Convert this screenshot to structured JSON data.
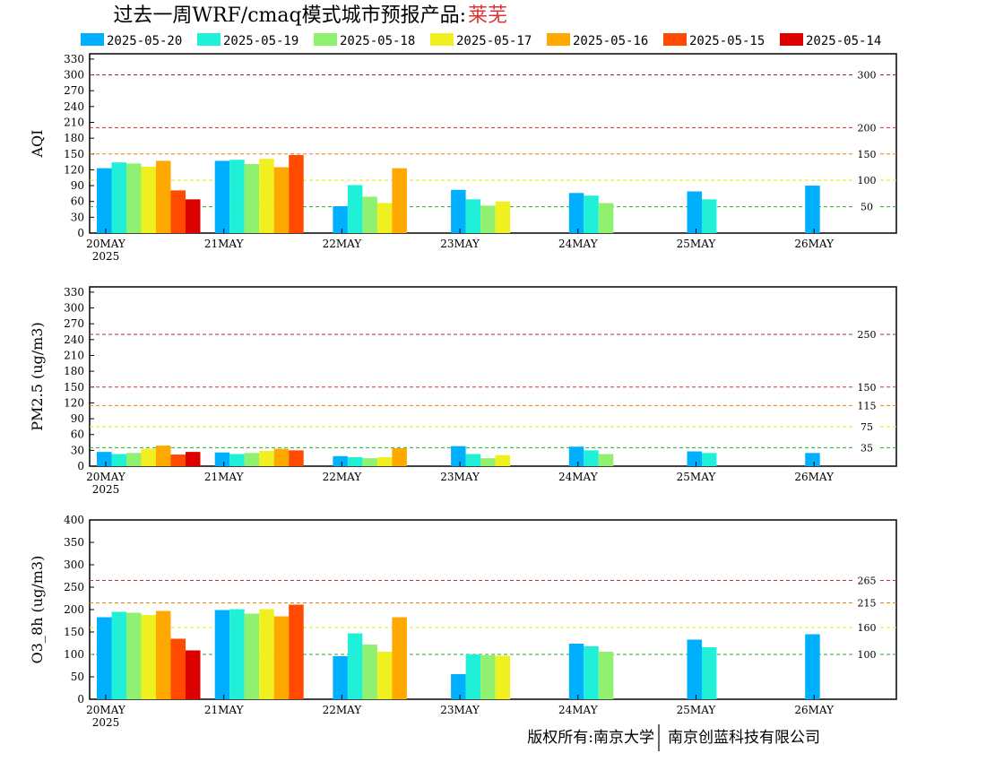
{
  "title": {
    "main": "过去一周WRF/cmaq模式城市预报产品:",
    "city": "莱芜",
    "city_color": "#e03030"
  },
  "legend": [
    {
      "label": "2025-05-20",
      "color": "#00b0ff"
    },
    {
      "label": "2025-05-19",
      "color": "#20f0d8"
    },
    {
      "label": "2025-05-18",
      "color": "#90f070"
    },
    {
      "label": "2025-05-17",
      "color": "#f0f020"
    },
    {
      "label": "2025-05-16",
      "color": "#ffa800"
    },
    {
      "label": "2025-05-15",
      "color": "#ff4a00"
    },
    {
      "label": "2025-05-14",
      "color": "#dd0000"
    }
  ],
  "footer": {
    "left": "版权所有:南京大学",
    "right": "南京创蓝科技有限公司"
  },
  "chart_data": [
    {
      "type": "bar",
      "ylabel": "AQI",
      "ylim": [
        0,
        340
      ],
      "yticks": [
        0,
        30,
        60,
        90,
        120,
        150,
        180,
        210,
        240,
        270,
        300,
        330
      ],
      "categories": [
        "20MAY",
        "21MAY",
        "22MAY",
        "23MAY",
        "24MAY",
        "25MAY",
        "26MAY"
      ],
      "year_label": "2025",
      "thresholds": [
        {
          "value": 300,
          "label": "300",
          "color": "#a0205a"
        },
        {
          "value": 200,
          "label": "200",
          "color": "#d03030"
        },
        {
          "value": 150,
          "label": "150",
          "color": "#f08000"
        },
        {
          "value": 100,
          "label": "100",
          "color": "#e8e800"
        },
        {
          "value": 50,
          "label": "50",
          "color": "#20b020"
        }
      ],
      "series": [
        {
          "name": "2025-05-20",
          "values": [
            123,
            137,
            51,
            82,
            76,
            79,
            90
          ]
        },
        {
          "name": "2025-05-19",
          "values": [
            134,
            139,
            91,
            64,
            71,
            64,
            null
          ]
        },
        {
          "name": "2025-05-18",
          "values": [
            132,
            131,
            69,
            52,
            57,
            null,
            null
          ]
        },
        {
          "name": "2025-05-17",
          "values": [
            126,
            141,
            57,
            60,
            null,
            null,
            null
          ]
        },
        {
          "name": "2025-05-16",
          "values": [
            137,
            125,
            123,
            null,
            null,
            null,
            null
          ]
        },
        {
          "name": "2025-05-15",
          "values": [
            81,
            148,
            null,
            null,
            null,
            null,
            null
          ]
        },
        {
          "name": "2025-05-14",
          "values": [
            64,
            null,
            null,
            null,
            null,
            null,
            null
          ]
        }
      ]
    },
    {
      "type": "bar",
      "ylabel": "PM2.5 (ug/m3)",
      "ylim": [
        0,
        340
      ],
      "yticks": [
        0,
        30,
        60,
        90,
        120,
        150,
        180,
        210,
        240,
        270,
        300,
        330
      ],
      "categories": [
        "20MAY",
        "21MAY",
        "22MAY",
        "23MAY",
        "24MAY",
        "25MAY",
        "26MAY"
      ],
      "year_label": "2025",
      "thresholds": [
        {
          "value": 250,
          "label": "250",
          "color": "#a0205a"
        },
        {
          "value": 150,
          "label": "150",
          "color": "#d03030"
        },
        {
          "value": 115,
          "label": "115",
          "color": "#f08000"
        },
        {
          "value": 75,
          "label": "75",
          "color": "#e8e800"
        },
        {
          "value": 35,
          "label": "35",
          "color": "#20b020"
        }
      ],
      "series": [
        {
          "name": "2025-05-20",
          "values": [
            27,
            26,
            19,
            38,
            37,
            28,
            25
          ]
        },
        {
          "name": "2025-05-19",
          "values": [
            23,
            23,
            17,
            23,
            30,
            25,
            null
          ]
        },
        {
          "name": "2025-05-18",
          "values": [
            25,
            25,
            15,
            15,
            23,
            null,
            null
          ]
        },
        {
          "name": "2025-05-17",
          "values": [
            33,
            29,
            17,
            21,
            null,
            null,
            null
          ]
        },
        {
          "name": "2025-05-16",
          "values": [
            39,
            33,
            34,
            null,
            null,
            null,
            null
          ]
        },
        {
          "name": "2025-05-15",
          "values": [
            22,
            30,
            null,
            null,
            null,
            null,
            null
          ]
        },
        {
          "name": "2025-05-14",
          "values": [
            27,
            null,
            null,
            null,
            null,
            null,
            null
          ]
        }
      ]
    },
    {
      "type": "bar",
      "ylabel": "O3_8h (ug/m3)",
      "ylim": [
        0,
        400
      ],
      "yticks": [
        0,
        50,
        100,
        150,
        200,
        250,
        300,
        350,
        400
      ],
      "categories": [
        "20MAY",
        "21MAY",
        "22MAY",
        "23MAY",
        "24MAY",
        "25MAY",
        "26MAY"
      ],
      "year_label": "2025",
      "thresholds": [
        {
          "value": 265,
          "label": "265",
          "color": "#d03030"
        },
        {
          "value": 215,
          "label": "215",
          "color": "#f08000"
        },
        {
          "value": 160,
          "label": "160",
          "color": "#e8e800"
        },
        {
          "value": 100,
          "label": "100",
          "color": "#20b020"
        }
      ],
      "series": [
        {
          "name": "2025-05-20",
          "values": [
            183,
            199,
            96,
            56,
            124,
            133,
            145
          ]
        },
        {
          "name": "2025-05-19",
          "values": [
            195,
            201,
            147,
            100,
            118,
            116,
            null
          ]
        },
        {
          "name": "2025-05-18",
          "values": [
            193,
            191,
            122,
            98,
            106,
            null,
            null
          ]
        },
        {
          "name": "2025-05-17",
          "values": [
            188,
            201,
            106,
            97,
            null,
            null,
            null
          ]
        },
        {
          "name": "2025-05-16",
          "values": [
            197,
            185,
            183,
            null,
            null,
            null,
            null
          ]
        },
        {
          "name": "2025-05-15",
          "values": [
            135,
            211,
            null,
            null,
            null,
            null,
            null
          ]
        },
        {
          "name": "2025-05-14",
          "values": [
            109,
            null,
            null,
            null,
            null,
            null,
            null
          ]
        }
      ]
    }
  ]
}
